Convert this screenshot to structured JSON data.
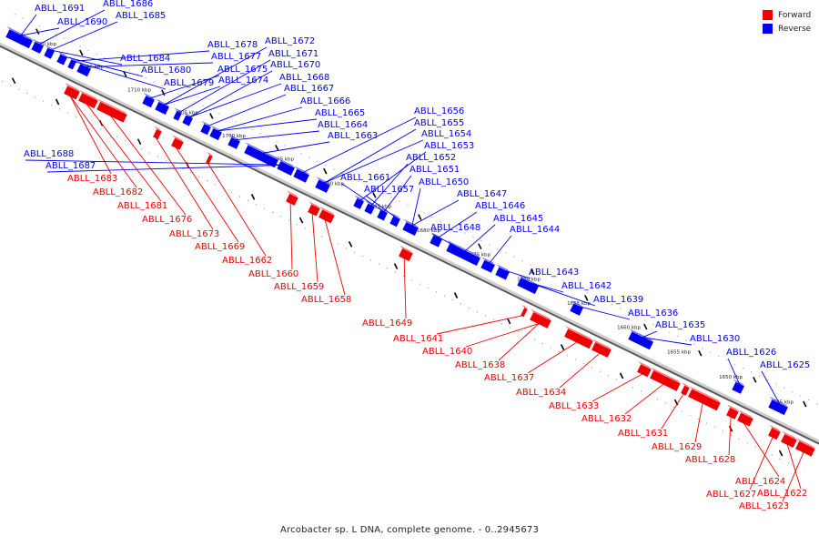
{
  "caption": "Arcobacter sp. L DNA, complete genome. - 0..2945673",
  "legend": [
    {
      "label": "Forward",
      "color": "#ee0000"
    },
    {
      "label": "Reverse",
      "color": "#0000ee"
    }
  ],
  "colors": {
    "forward": "#ee0000",
    "reverse": "#0000ee",
    "axis": "#888888",
    "ticks": "#000000"
  },
  "scale_ticks": [
    "1720 kbp",
    "1715 kbp",
    "1710 kbp",
    "1705 kbp",
    "1700 kbp",
    "1695 kbp",
    "1690 kbp",
    "1685 kbp",
    "1680 kbp",
    "1675 kbp",
    "1670 kbp",
    "1665 kbp",
    "1660 kbp",
    "1655 kbp",
    "1650 kbp",
    "1645 kbp"
  ],
  "reverse_genes": [
    "ABLL_1691",
    "ABLL_1690",
    "ABLL_1686",
    "ABLL_1685",
    "ABLL_1684",
    "ABLL_1680",
    "ABLL_1679",
    "ABLL_1678",
    "ABLL_1677",
    "ABLL_1675",
    "ABLL_1674",
    "ABLL_1672",
    "ABLL_1671",
    "ABLL_1670",
    "ABLL_1668",
    "ABLL_1667",
    "ABLL_1666",
    "ABLL_1665",
    "ABLL_1664",
    "ABLL_1663",
    "ABLL_1688",
    "ABLL_1687",
    "ABLL_1656",
    "ABLL_1655",
    "ABLL_1654",
    "ABLL_1653",
    "ABLL_1652",
    "ABLL_1651",
    "ABLL_1661",
    "ABLL_1657",
    "ABLL_1650",
    "ABLL_1647",
    "ABLL_1646",
    "ABLL_1645",
    "ABLL_1648",
    "ABLL_1644",
    "ABLL_1643",
    "ABLL_1642",
    "ABLL_1639",
    "ABLL_1636",
    "ABLL_1635",
    "ABLL_1630",
    "ABLL_1626",
    "ABLL_1625"
  ],
  "forward_genes": [
    "ABLL_1683",
    "ABLL_1682",
    "ABLL_1681",
    "ABLL_1676",
    "ABLL_1673",
    "ABLL_1669",
    "ABLL_1662",
    "ABLL_1660",
    "ABLL_1659",
    "ABLL_1658",
    "ABLL_1649",
    "ABLL_1641",
    "ABLL_1640",
    "ABLL_1638",
    "ABLL_1637",
    "ABLL_1634",
    "ABLL_1633",
    "ABLL_1632",
    "ABLL_1631",
    "ABLL_1629",
    "ABLL_1628",
    "ABLL_1624",
    "ABLL_1627",
    "ABLL_1622",
    "ABLL_1623"
  ]
}
